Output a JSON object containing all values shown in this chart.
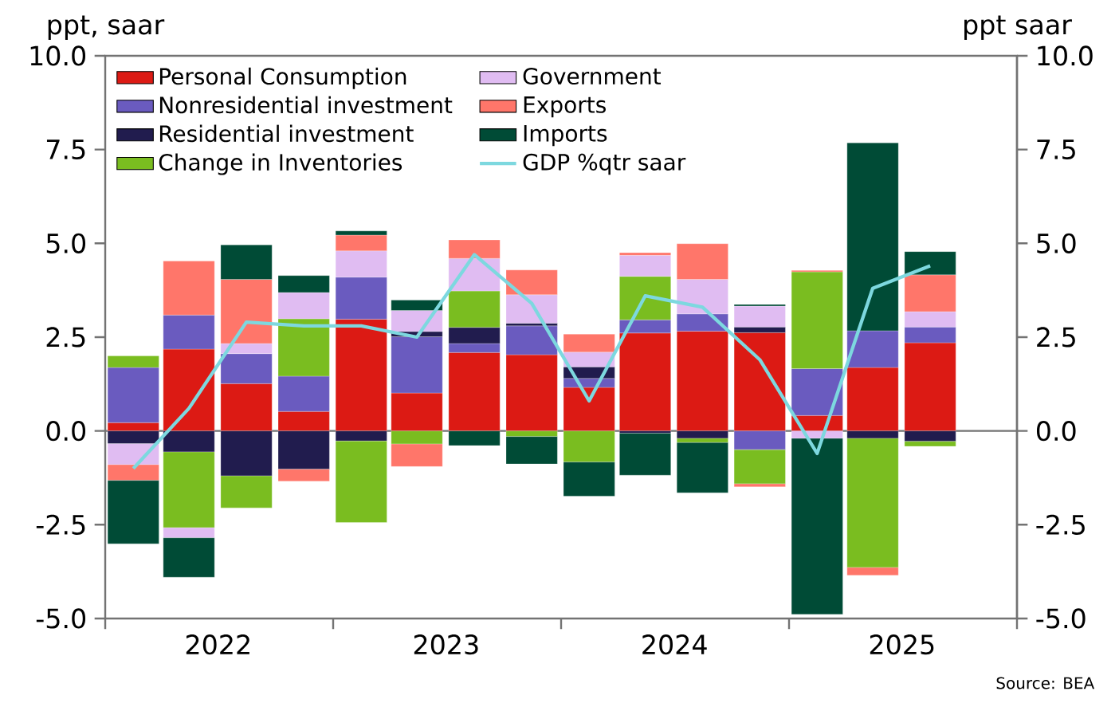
{
  "chart_data": {
    "type": "bar",
    "stacked": true,
    "ylabel": "ppt, saar",
    "y2label": "ppt saar",
    "x": [
      "2022-02-15",
      "2022-05-15",
      "2022-08-15",
      "2022-11-15",
      "2023-02-15",
      "2023-05-15",
      "2023-08-15",
      "2023-11-15",
      "2024-02-15",
      "2024-05-15",
      "2024-08-15",
      "2024-11-15",
      "2025-02-15",
      "2025-05-15",
      "2025-08-15"
    ],
    "xlim": [
      "2022-01-01",
      "2026-01-01"
    ],
    "xticks": [
      {
        "value": "2022-01-01",
        "label": null
      },
      {
        "value": "2022-07-01",
        "label": "2022"
      },
      {
        "value": "2023-01-01",
        "label": null
      },
      {
        "value": "2023-07-01",
        "label": "2023"
      },
      {
        "value": "2024-01-01",
        "label": null
      },
      {
        "value": "2024-07-01",
        "label": "2024"
      },
      {
        "value": "2025-01-01",
        "label": null
      },
      {
        "value": "2025-07-01",
        "label": "2025"
      },
      {
        "value": "2026-01-01",
        "label": null
      }
    ],
    "ylim": [
      -5,
      10
    ],
    "yticks": [
      {
        "value": -5,
        "label": "-5.0"
      },
      {
        "value": -2.5,
        "label": "-2.5"
      },
      {
        "value": 0,
        "label": "0.0"
      },
      {
        "value": 2.5,
        "label": "2.5"
      },
      {
        "value": 5,
        "label": "5.0"
      },
      {
        "value": 7.5,
        "label": "7.5"
      },
      {
        "value": 10,
        "label": "10.0"
      }
    ],
    "y2lim": [
      -5,
      10
    ],
    "y2ticks": [
      {
        "value": -5,
        "label": "-5.0"
      },
      {
        "value": -2.5,
        "label": "-2.5"
      },
      {
        "value": 0,
        "label": "0.0"
      },
      {
        "value": 2.5,
        "label": "2.5"
      },
      {
        "value": 5,
        "label": "5.0"
      },
      {
        "value": 7.5,
        "label": "7.5"
      },
      {
        "value": 10,
        "label": "10.0"
      }
    ],
    "legend": "top left",
    "annotations": [
      "Source: BEA"
    ],
    "series": [
      {
        "name": "Personal Consumption",
        "color": "#dc1a14",
        "values": [
          0.22,
          2.18,
          1.26,
          0.52,
          2.98,
          1.01,
          2.09,
          2.03,
          1.16,
          2.61,
          2.66,
          2.62,
          0.41,
          1.69,
          2.35
        ]
      },
      {
        "name": "Nonresidential investment",
        "color": "#6a5bbf",
        "values": [
          1.47,
          0.91,
          0.8,
          0.94,
          1.12,
          1.5,
          0.24,
          0.77,
          0.24,
          0.35,
          0.46,
          -0.5,
          1.25,
          0.98,
          0.42
        ]
      },
      {
        "name": "Residential investment",
        "color": "#211c4e",
        "values": [
          -0.34,
          -0.56,
          -1.2,
          -1.02,
          -0.27,
          0.14,
          0.43,
          0.07,
          0.31,
          -0.06,
          -0.2,
          0.15,
          null,
          -0.2,
          -0.28
        ]
      },
      {
        "name": "Change in Inventories",
        "color": "#7abd20",
        "values": [
          0.31,
          -2.02,
          -0.85,
          1.53,
          -2.17,
          -0.35,
          0.97,
          -0.15,
          -0.83,
          1.16,
          -0.11,
          -0.91,
          2.58,
          -3.44,
          -0.13
        ]
      },
      {
        "name": "Government",
        "color": "#e0bcf2",
        "values": [
          -0.56,
          -0.27,
          0.27,
          0.7,
          0.7,
          0.56,
          0.87,
          0.76,
          0.39,
          0.56,
          0.92,
          0.56,
          -0.2,
          null,
          0.41
        ]
      },
      {
        "name": "Exports",
        "color": "#ff766a",
        "values": [
          -0.42,
          1.44,
          1.71,
          -0.32,
          0.42,
          -0.6,
          0.49,
          0.66,
          0.48,
          0.07,
          0.95,
          -0.08,
          0.04,
          -0.21,
          0.98
        ]
      },
      {
        "name": "Imports",
        "color": "#004b36",
        "values": [
          -1.69,
          -1.05,
          0.92,
          0.45,
          0.11,
          0.28,
          -0.39,
          -0.73,
          -0.91,
          -1.12,
          -1.34,
          0.04,
          -4.69,
          5.01,
          0.62
        ]
      },
      {
        "name": "GDP %qtr saar",
        "type": "line",
        "axis": "y2",
        "color": "#7dd8df",
        "values": [
          -1.0,
          0.6,
          2.9,
          2.8,
          2.8,
          2.5,
          4.7,
          3.4,
          0.8,
          3.6,
          3.3,
          1.9,
          -0.6,
          3.8,
          4.4
        ]
      }
    ]
  }
}
